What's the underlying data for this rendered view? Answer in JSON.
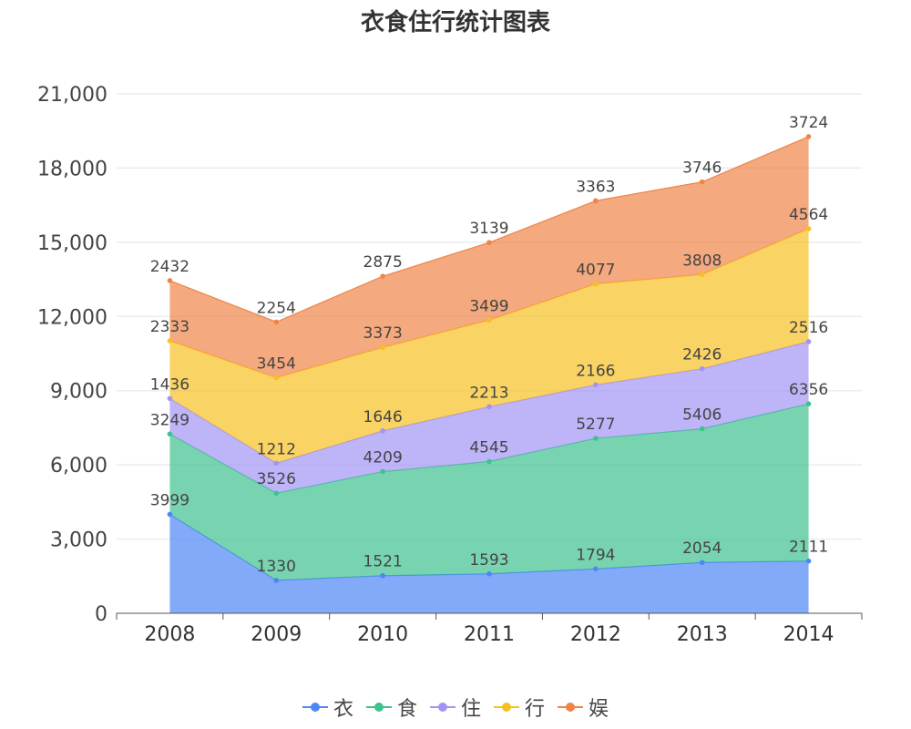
{
  "chart_data": {
    "type": "area",
    "stacked": true,
    "title": "衣食住行统计图表",
    "categories": [
      "2008",
      "2009",
      "2010",
      "2011",
      "2012",
      "2013",
      "2014"
    ],
    "ylim": [
      0,
      21000
    ],
    "yticks": [
      "0",
      "3,000",
      "6,000",
      "9,000",
      "12,000",
      "15,000",
      "18,000",
      "21,000"
    ],
    "grid": true,
    "legend_position": "bottom",
    "series": [
      {
        "name": "衣",
        "color": "#4e86f7",
        "values": [
          3999,
          1330,
          1521,
          1593,
          1794,
          2054,
          2111
        ]
      },
      {
        "name": "食",
        "color": "#3ec28f",
        "values": [
          3249,
          3526,
          4209,
          4545,
          5277,
          5406,
          6356
        ]
      },
      {
        "name": "住",
        "color": "#a294f5",
        "values": [
          1436,
          1212,
          1646,
          2213,
          2166,
          2426,
          2516
        ]
      },
      {
        "name": "行",
        "color": "#f6c022",
        "values": [
          2333,
          3454,
          3373,
          3499,
          4077,
          3808,
          4564
        ]
      },
      {
        "name": "娱",
        "color": "#ef8447",
        "values": [
          2432,
          2254,
          2875,
          3139,
          3363,
          3746,
          3724
        ]
      }
    ]
  }
}
